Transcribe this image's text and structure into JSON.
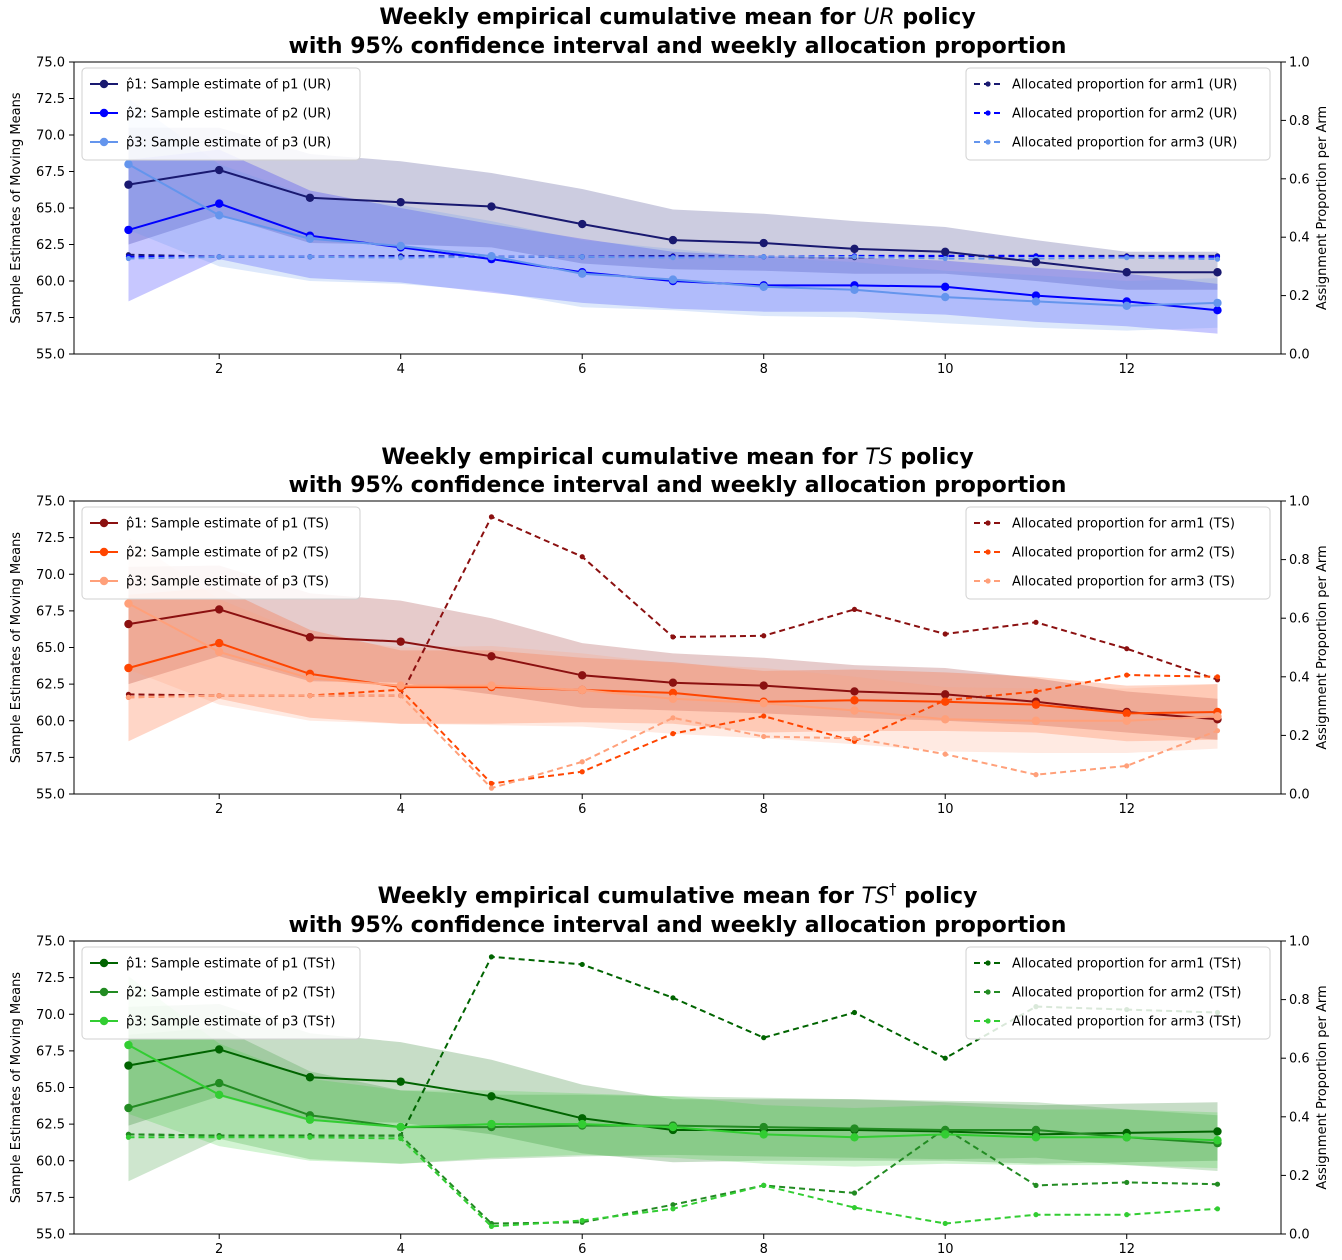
{
  "chart_data": [
    {
      "type": "line",
      "title": "Weekly empirical cumulative mean for UR policy with 95% confidence interval and weekly allocation proportion",
      "title_lines": [
        {
          "pre": "Weekly empirical cumulative mean for ",
          "em": "UR",
          "post": " policy"
        },
        {
          "pre": "with 95% confidence interval and weekly allocation proportion",
          "em": "",
          "post": ""
        }
      ],
      "ylabel": "Sample Estimates of Moving Means",
      "y2label": "Assignment Proportion per Arm",
      "xlim": [
        0.4,
        13.7
      ],
      "ylim": [
        55.0,
        75.0
      ],
      "y2lim": [
        0.0,
        1.0
      ],
      "xticks": [
        2,
        4,
        6,
        8,
        10,
        12
      ],
      "yticks": [
        "55.0",
        "57.5",
        "60.0",
        "62.5",
        "65.0",
        "67.5",
        "70.0",
        "72.5",
        "75.0"
      ],
      "y2ticks": [
        "0.0",
        "0.2",
        "0.4",
        "0.6",
        "0.8",
        "1.0"
      ],
      "grid": false,
      "legend_left_position": "upper-left",
      "legend_right_position": "upper-right",
      "x": [
        1,
        2,
        3,
        4,
        5,
        6,
        7,
        8,
        9,
        10,
        11,
        12,
        13
      ],
      "series": [
        {
          "name": "p̂1: Sample estimate of p1 (UR)",
          "color": "#191970",
          "values": [
            66.6,
            67.6,
            65.7,
            65.4,
            65.1,
            63.9,
            62.8,
            62.6,
            62.2,
            62.0,
            61.3,
            60.6,
            60.6
          ],
          "ci_low": [
            62.5,
            64.5,
            62.6,
            62.5,
            62.3,
            61.2,
            60.8,
            60.7,
            60.5,
            60.5,
            60.0,
            59.4,
            59.4
          ],
          "ci_high": [
            70.5,
            70.5,
            68.7,
            68.2,
            67.4,
            66.3,
            64.9,
            64.6,
            64.1,
            63.7,
            62.8,
            62.0,
            62.0
          ]
        },
        {
          "name": "p̂2: Sample estimate of p2 (UR)",
          "color": "#0000ff",
          "values": [
            63.5,
            65.3,
            63.1,
            62.3,
            61.5,
            60.6,
            60.0,
            59.7,
            59.7,
            59.6,
            59.0,
            58.6,
            58.0
          ],
          "ci_low": [
            58.6,
            61.5,
            60.2,
            59.9,
            59.2,
            58.5,
            58.1,
            57.9,
            57.9,
            57.7,
            57.2,
            56.9,
            56.4
          ],
          "ci_high": [
            68.3,
            69.0,
            66.2,
            65.0,
            63.9,
            62.9,
            62.0,
            61.7,
            61.6,
            61.4,
            60.9,
            60.5,
            59.8
          ]
        },
        {
          "name": "p̂3: Sample estimate of p3 (UR)",
          "color": "#6495ed",
          "values": [
            68.0,
            64.5,
            62.9,
            62.4,
            61.7,
            60.5,
            60.1,
            59.6,
            59.4,
            58.9,
            58.6,
            58.3,
            58.5
          ],
          "ci_low": [
            63.5,
            61.0,
            60.0,
            59.8,
            59.3,
            58.2,
            58.0,
            57.6,
            57.5,
            57.1,
            56.8,
            56.6,
            56.8
          ],
          "ci_high": [
            72.5,
            68.0,
            65.8,
            65.2,
            64.1,
            62.8,
            62.2,
            61.6,
            61.3,
            60.7,
            60.4,
            60.0,
            60.2
          ]
        }
      ],
      "allocation_series": [
        {
          "name": "Allocated proportion for arm1 (UR)",
          "color": "#191970",
          "values": [
            0.34,
            0.333,
            0.333,
            0.336,
            0.333,
            0.333,
            0.336,
            0.333,
            0.33,
            0.336,
            0.336,
            0.336,
            0.336
          ]
        },
        {
          "name": "Allocated proportion for arm2 (UR)",
          "color": "#0000ff",
          "values": [
            0.333,
            0.333,
            0.333,
            0.333,
            0.333,
            0.333,
            0.333,
            0.333,
            0.336,
            0.336,
            0.336,
            0.333,
            0.333
          ]
        },
        {
          "name": "Allocated proportion for arm3 (UR)",
          "color": "#6495ed",
          "values": [
            0.327,
            0.333,
            0.333,
            0.33,
            0.333,
            0.333,
            0.33,
            0.333,
            0.333,
            0.327,
            0.327,
            0.33,
            0.325
          ]
        }
      ]
    },
    {
      "type": "line",
      "title": "Weekly empirical cumulative mean for TS policy with 95% confidence interval and weekly allocation proportion",
      "title_lines": [
        {
          "pre": "Weekly empirical cumulative mean for ",
          "em": "TS",
          "post": " policy"
        },
        {
          "pre": "with 95% confidence interval and weekly allocation proportion",
          "em": "",
          "post": ""
        }
      ],
      "ylabel": "Sample Estimates of Moving Means",
      "y2label": "Assignment Proportion per Arm",
      "xlim": [
        0.4,
        13.7
      ],
      "ylim": [
        55.0,
        75.0
      ],
      "y2lim": [
        0.0,
        1.0
      ],
      "xticks": [
        2,
        4,
        6,
        8,
        10,
        12
      ],
      "yticks": [
        "55.0",
        "57.5",
        "60.0",
        "62.5",
        "65.0",
        "67.5",
        "70.0",
        "72.5",
        "75.0"
      ],
      "y2ticks": [
        "0.0",
        "0.2",
        "0.4",
        "0.6",
        "0.8",
        "1.0"
      ],
      "grid": false,
      "legend_left_position": "upper-left",
      "legend_right_position": "upper-right",
      "x": [
        1,
        2,
        3,
        4,
        5,
        6,
        7,
        8,
        9,
        10,
        11,
        12,
        13
      ],
      "series": [
        {
          "name": "p̂1: Sample estimate of p1 (TS)",
          "color": "#8b1010",
          "values": [
            66.6,
            67.6,
            65.7,
            65.4,
            64.4,
            63.1,
            62.6,
            62.4,
            62.0,
            61.8,
            61.3,
            60.6,
            60.1
          ],
          "ci_low": [
            62.5,
            64.4,
            62.7,
            62.6,
            61.8,
            60.9,
            60.7,
            60.5,
            60.2,
            60.0,
            59.7,
            59.2,
            58.7
          ],
          "ci_high": [
            70.5,
            70.6,
            68.7,
            68.2,
            67.0,
            65.3,
            64.6,
            64.3,
            63.8,
            63.6,
            62.9,
            62.0,
            61.5
          ]
        },
        {
          "name": "p̂2: Sample estimate of p2 (TS)",
          "color": "#ff4500",
          "values": [
            63.6,
            65.3,
            63.2,
            62.3,
            62.3,
            62.1,
            61.9,
            61.3,
            61.4,
            61.3,
            61.1,
            60.5,
            60.6
          ],
          "ci_low": [
            58.6,
            61.5,
            60.2,
            59.8,
            59.8,
            59.9,
            59.8,
            59.2,
            59.3,
            59.3,
            59.2,
            58.6,
            58.7
          ],
          "ci_high": [
            68.6,
            69.1,
            66.2,
            64.8,
            64.8,
            64.3,
            64.0,
            63.4,
            63.5,
            63.3,
            63.0,
            62.4,
            62.5
          ]
        },
        {
          "name": "p̂3: Sample estimate of p3 (TS)",
          "color": "#ffa07a",
          "values": [
            68.0,
            64.7,
            62.9,
            62.4,
            62.4,
            62.1,
            61.5,
            61.2,
            60.7,
            60.1,
            60.0,
            60.0,
            60.3
          ],
          "ci_low": [
            63.5,
            61.1,
            60.0,
            59.8,
            59.7,
            59.6,
            59.1,
            58.8,
            58.4,
            57.9,
            57.8,
            57.8,
            58.1
          ],
          "ci_high": [
            72.5,
            68.3,
            65.8,
            65.0,
            65.1,
            64.6,
            63.9,
            63.6,
            63.0,
            62.3,
            62.2,
            62.2,
            62.5
          ]
        }
      ],
      "allocation_series": [
        {
          "name": "Allocated proportion for arm1 (TS)",
          "color": "#8b1010",
          "values": [
            0.34,
            0.336,
            0.336,
            0.336,
            0.946,
            0.81,
            0.536,
            0.54,
            0.63,
            0.546,
            0.586,
            0.496,
            0.39
          ]
        },
        {
          "name": "Allocated proportion for arm2 (TS)",
          "color": "#ff4500",
          "values": [
            0.33,
            0.336,
            0.336,
            0.356,
            0.036,
            0.076,
            0.206,
            0.266,
            0.18,
            0.32,
            0.35,
            0.406,
            0.4
          ]
        },
        {
          "name": "Allocated proportion for arm3 (TS)",
          "color": "#ffa07a",
          "values": [
            0.33,
            0.336,
            0.336,
            0.336,
            0.02,
            0.11,
            0.26,
            0.196,
            0.19,
            0.136,
            0.066,
            0.096,
            0.216
          ]
        }
      ]
    },
    {
      "type": "line",
      "title": "Weekly empirical cumulative mean for TS† policy with 95% confidence interval and weekly allocation proportion",
      "title_lines": [
        {
          "pre": "Weekly empirical cumulative mean for ",
          "em": "TS",
          "sup": "†",
          "post": " policy"
        },
        {
          "pre": "with 95% confidence interval and weekly allocation proportion",
          "em": "",
          "post": ""
        }
      ],
      "ylabel": "Sample Estimates of Moving Means",
      "y2label": "Assignment Proportion per Arm",
      "xlim": [
        0.4,
        13.7
      ],
      "ylim": [
        55.0,
        75.0
      ],
      "y2lim": [
        0.0,
        1.0
      ],
      "xticks": [
        2,
        4,
        6,
        8,
        10,
        12
      ],
      "yticks": [
        "55.0",
        "57.5",
        "60.0",
        "62.5",
        "65.0",
        "67.5",
        "70.0",
        "72.5",
        "75.0"
      ],
      "y2ticks": [
        "0.0",
        "0.2",
        "0.4",
        "0.6",
        "0.8",
        "1.0"
      ],
      "grid": false,
      "legend_left_position": "upper-left",
      "legend_right_position": "upper-right",
      "x": [
        1,
        2,
        3,
        4,
        5,
        6,
        7,
        8,
        9,
        10,
        11,
        12,
        13
      ],
      "series": [
        {
          "name": "p̂1: Sample estimate of p1 (TS†)",
          "color": "#006400",
          "values": [
            66.5,
            67.6,
            65.7,
            65.4,
            64.4,
            62.9,
            62.1,
            62.1,
            62.1,
            62.0,
            61.8,
            61.9,
            62.0
          ],
          "ci_low": [
            62.4,
            64.4,
            62.7,
            62.6,
            61.8,
            60.5,
            59.9,
            60.0,
            60.0,
            60.0,
            59.8,
            59.9,
            60.0
          ],
          "ci_high": [
            70.5,
            70.7,
            68.7,
            68.1,
            66.9,
            65.2,
            64.2,
            64.2,
            64.2,
            64.0,
            63.8,
            63.9,
            64.0
          ]
        },
        {
          "name": "p̂2: Sample estimate of p2 (TS†)",
          "color": "#228b22",
          "values": [
            63.6,
            65.3,
            63.1,
            62.3,
            62.3,
            62.4,
            62.4,
            62.3,
            62.2,
            62.1,
            62.1,
            61.6,
            61.2
          ],
          "ci_low": [
            58.6,
            61.5,
            60.1,
            59.8,
            60.1,
            60.3,
            60.4,
            60.3,
            60.2,
            60.1,
            60.2,
            59.7,
            59.3
          ],
          "ci_high": [
            68.6,
            69.1,
            66.1,
            64.8,
            64.5,
            64.5,
            64.4,
            64.3,
            64.2,
            64.1,
            64.0,
            63.5,
            63.1
          ]
        },
        {
          "name": "p̂3: Sample estimate of p3 (TS†)",
          "color": "#32cd32",
          "values": [
            67.9,
            64.5,
            62.8,
            62.3,
            62.5,
            62.5,
            62.3,
            61.8,
            61.6,
            61.8,
            61.6,
            61.6,
            61.4
          ],
          "ci_low": [
            63.2,
            61.0,
            60.0,
            59.8,
            60.2,
            60.4,
            60.2,
            59.8,
            59.6,
            59.8,
            59.7,
            59.7,
            59.5
          ],
          "ci_high": [
            72.6,
            68.0,
            65.6,
            64.8,
            64.8,
            64.6,
            64.4,
            63.8,
            63.6,
            63.8,
            63.5,
            63.5,
            63.3
          ]
        }
      ],
      "allocation_series": [
        {
          "name": "Allocated proportion for arm1 (TS†)",
          "color": "#006400",
          "values": [
            0.34,
            0.336,
            0.336,
            0.336,
            0.946,
            0.92,
            0.806,
            0.67,
            0.756,
            0.6,
            0.776,
            0.766,
            0.756
          ]
        },
        {
          "name": "Allocated proportion for arm2 (TS†)",
          "color": "#228b22",
          "values": [
            0.34,
            0.336,
            0.336,
            0.336,
            0.036,
            0.04,
            0.1,
            0.166,
            0.14,
            0.36,
            0.166,
            0.176,
            0.17
          ]
        },
        {
          "name": "Allocated proportion for arm3 (TS†)",
          "color": "#32cd32",
          "values": [
            0.33,
            0.33,
            0.33,
            0.326,
            0.026,
            0.046,
            0.086,
            0.166,
            0.09,
            0.036,
            0.066,
            0.066,
            0.086
          ]
        }
      ]
    }
  ]
}
